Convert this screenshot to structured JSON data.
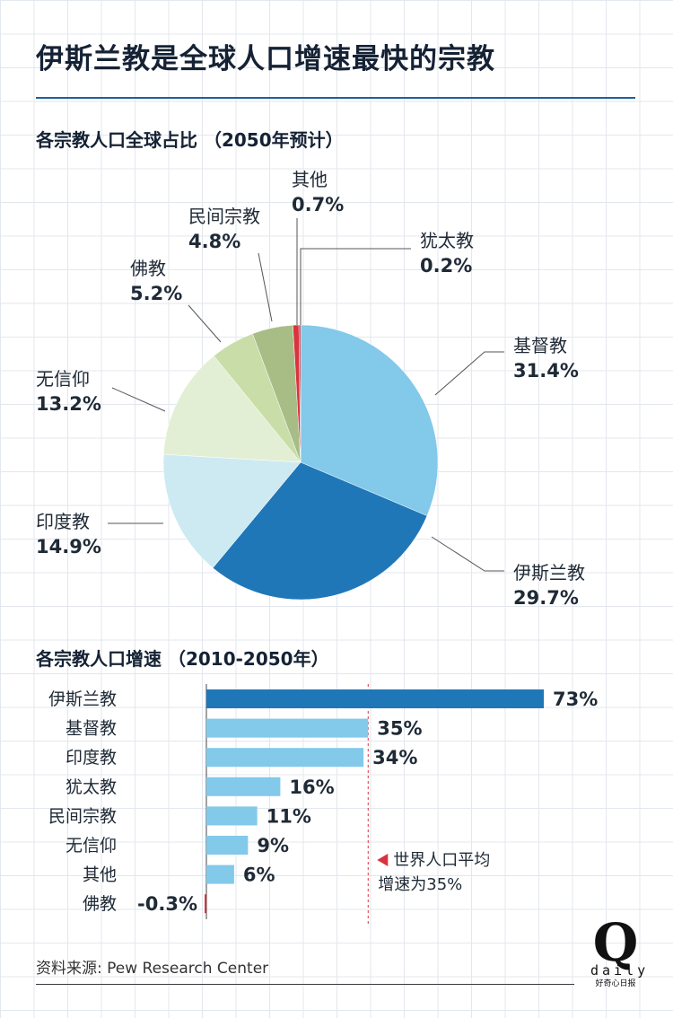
{
  "title": "伊斯兰教是全球人口增速最快的宗教",
  "source": "资料来源:  Pew Research Center",
  "logo": {
    "letter": "Q",
    "word": "daily",
    "tagline": "好奇心日报"
  },
  "colors": {
    "rule": "#1f5f9f",
    "bar_main": "#1f77b8",
    "bar_other": "#82c9ea",
    "bar_negative": "#d9333f",
    "avg_line": "#d9333f"
  },
  "chart_data": [
    {
      "type": "pie",
      "title": "各宗教人口全球占比 （2050年预计）",
      "slices": [
        {
          "label": "基督教",
          "value": 31.4,
          "display": "31.4%",
          "color": "#82c9ea"
        },
        {
          "label": "伊斯兰教",
          "value": 29.7,
          "display": "29.7%",
          "color": "#1f77b8"
        },
        {
          "label": "印度教",
          "value": 14.9,
          "display": "14.9%",
          "color": "#cdeaf3"
        },
        {
          "label": "无信仰",
          "value": 13.2,
          "display": "13.2%",
          "color": "#e3efd4"
        },
        {
          "label": "佛教",
          "value": 5.2,
          "display": "5.2%",
          "color": "#c9dda8"
        },
        {
          "label": "民间宗教",
          "value": 4.8,
          "display": "4.8%",
          "color": "#a8bd85"
        },
        {
          "label": "其他",
          "value": 0.7,
          "display": "0.7%",
          "color": "#d9333f"
        },
        {
          "label": "犹太教",
          "value": 0.2,
          "display": "0.2%",
          "color": "#b02a35"
        }
      ]
    },
    {
      "type": "bar",
      "title": "各宗教人口增速 （2010-2050年）",
      "categories": [
        "伊斯兰教",
        "基督教",
        "印度教",
        "犹太教",
        "民间宗教",
        "无信仰",
        "其他",
        "佛教"
      ],
      "values": [
        73,
        35,
        34,
        16,
        11,
        9,
        6,
        -0.3
      ],
      "labels": [
        "73%",
        "35%",
        "34%",
        "16%",
        "11%",
        "9%",
        "6%",
        "-0.3%"
      ],
      "reference": {
        "value": 35,
        "label_lines": [
          "世界人口平均",
          "增速为35%"
        ]
      }
    }
  ]
}
